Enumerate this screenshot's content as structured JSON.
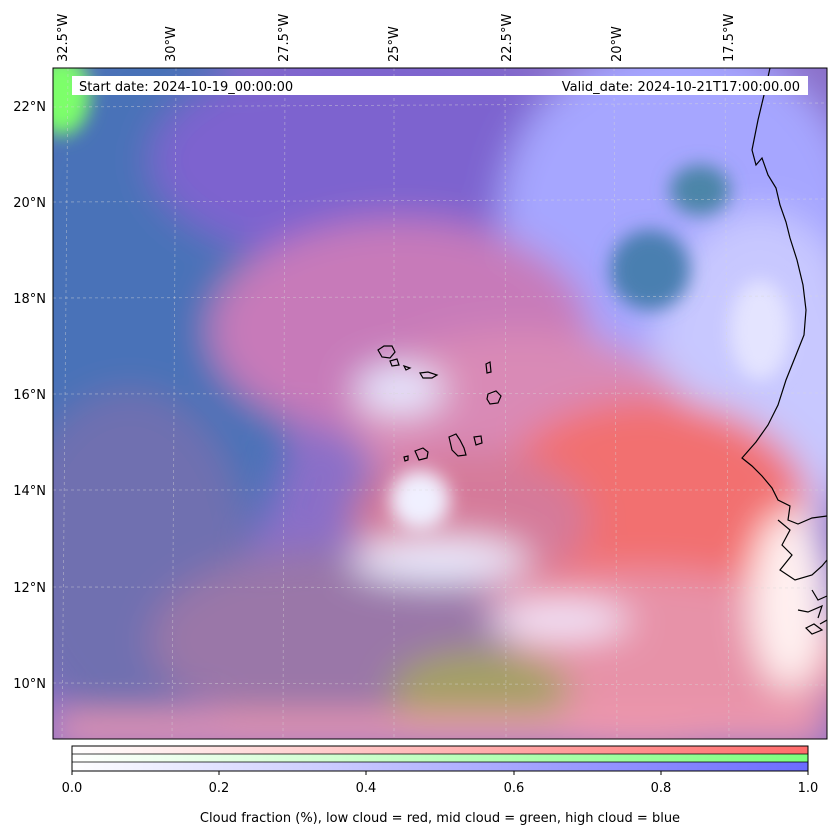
{
  "map": {
    "start_date": "Start date: 2024-10-19_00:00:00",
    "valid_date": "Valid_date: 2024-10-21T17:00:00.00",
    "longitude_labels": [
      "32.5°W",
      "30°W",
      "27.5°W",
      "25°W",
      "22.5°W",
      "20°W",
      "17.5°W"
    ],
    "latitude_labels": [
      "22°N",
      "20°N",
      "18°N",
      "16°N",
      "14°N",
      "12°N",
      "10°N"
    ]
  },
  "colorbar": {
    "tick_labels": [
      "0.0",
      "0.2",
      "0.4",
      "0.6",
      "0.8",
      "1.0"
    ],
    "label": "Cloud fraction (%), low cloud = red, mid cloud = green, high cloud = blue",
    "colors": {
      "low": "#ff6b6b",
      "mid": "#7dff7d",
      "high": "#6b6bff"
    }
  }
}
